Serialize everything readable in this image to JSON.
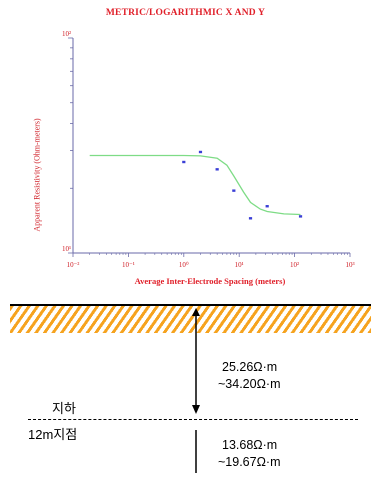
{
  "chart_data": {
    "type": "scatter",
    "title": "METRIC/LOGARITHMIC X AND Y",
    "xlabel": "Average Inter-Electrode Spacing (meters)",
    "ylabel": "Apparent Resistivity (Ohm-meters)",
    "x_scale": "log",
    "y_scale": "log",
    "x_tick_labels": [
      "10⁻²",
      "10⁻¹",
      "10⁰",
      "10¹",
      "10²",
      "10³"
    ],
    "y_tick_labels": [
      "10²",
      "10¹"
    ],
    "x_ticks": [
      0.01,
      0.1,
      1,
      10,
      100,
      1000
    ],
    "xlim": [
      0.01,
      1000
    ],
    "ylim": [
      10,
      100
    ],
    "grid": false,
    "points": {
      "x": [
        1,
        2,
        4,
        8,
        16,
        32,
        128
      ],
      "y": [
        26.5,
        29.5,
        24.5,
        19.5,
        14.5,
        16.5,
        14.8
      ]
    },
    "fit_curve": {
      "x": [
        0.02,
        0.1,
        0.5,
        1,
        2,
        4,
        6,
        8,
        12,
        16,
        24,
        32,
        64,
        128
      ],
      "y": [
        28.4,
        28.4,
        28.4,
        28.4,
        28.3,
        27.6,
        25.6,
        22.8,
        19.2,
        17.2,
        16.0,
        15.6,
        15.2,
        15.1
      ]
    },
    "colors": {
      "title": "#e0202a",
      "axis": "#6a6aa8",
      "points": "#3b3fd6",
      "curve": "#7edc86"
    }
  },
  "section": {
    "upper_range_line1": "25.26Ω·m",
    "upper_range_line2": "~34.20Ω·m",
    "label_underground": "지하",
    "label_depth": "12m지점",
    "lower_range_line1": "13.68Ω·m",
    "lower_range_line2": "~19.67Ω·m",
    "colors": {
      "hatch": "#f6a31f",
      "line": "#000000"
    }
  }
}
